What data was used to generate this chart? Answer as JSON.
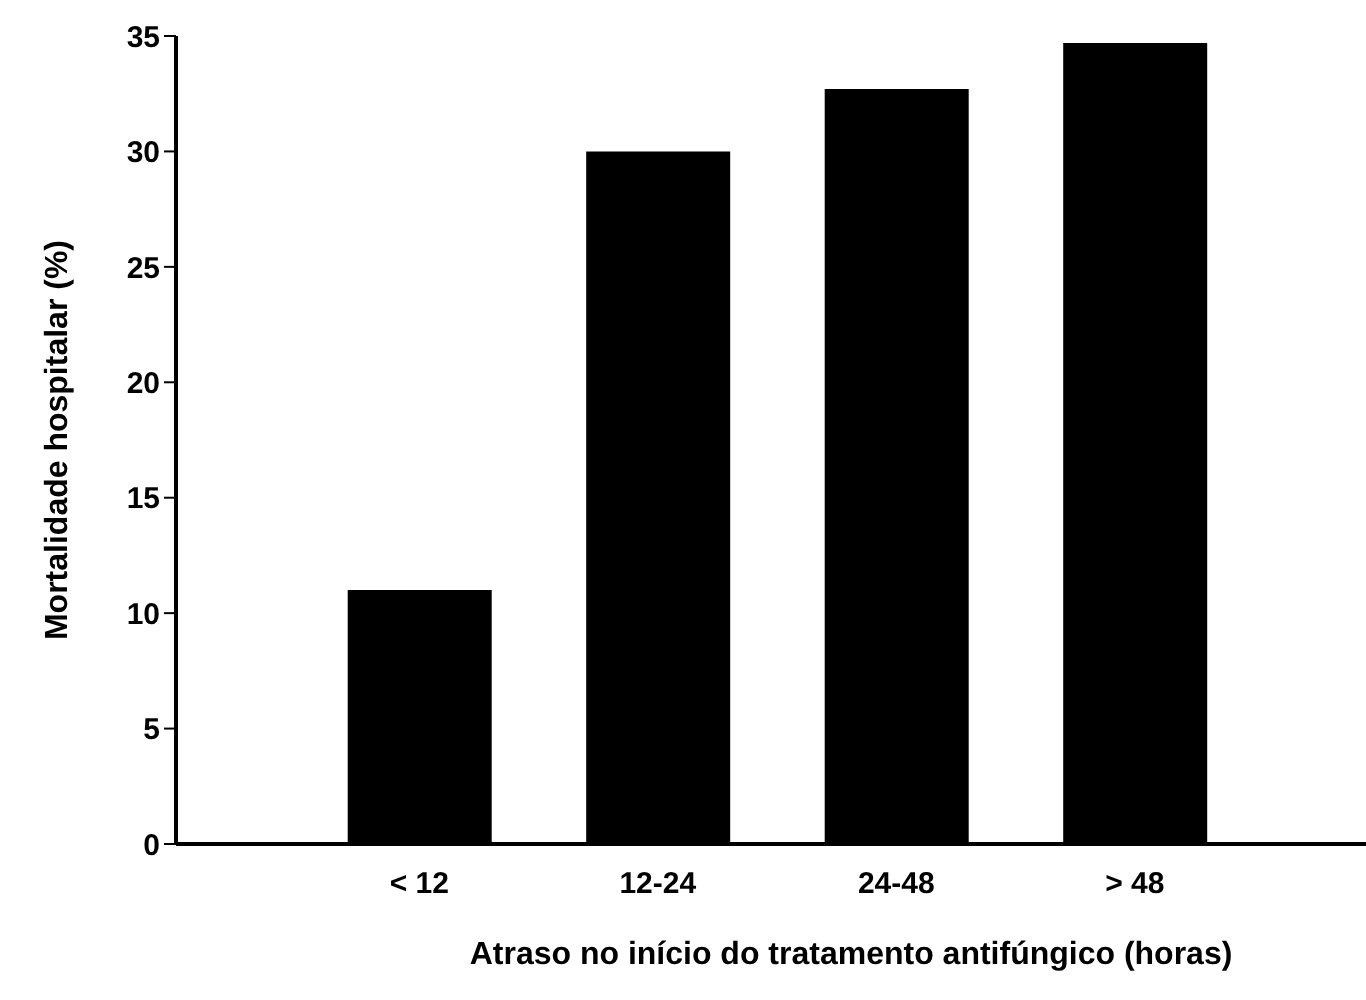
{
  "chart_data": {
    "type": "bar",
    "categories": [
      "< 12",
      "12-24",
      "24-48",
      "> 48"
    ],
    "values": [
      11,
      30,
      32.7,
      34.7
    ],
    "color": "#000000",
    "xlabel": "Atraso no início do tratamento antifúngico (horas)",
    "ylabel": "Mortalidade hospitalar (%)",
    "ylim": [
      0,
      35
    ],
    "yticks": [
      0,
      5,
      10,
      15,
      20,
      25,
      30,
      35
    ],
    "grid": false,
    "legend": false
  }
}
